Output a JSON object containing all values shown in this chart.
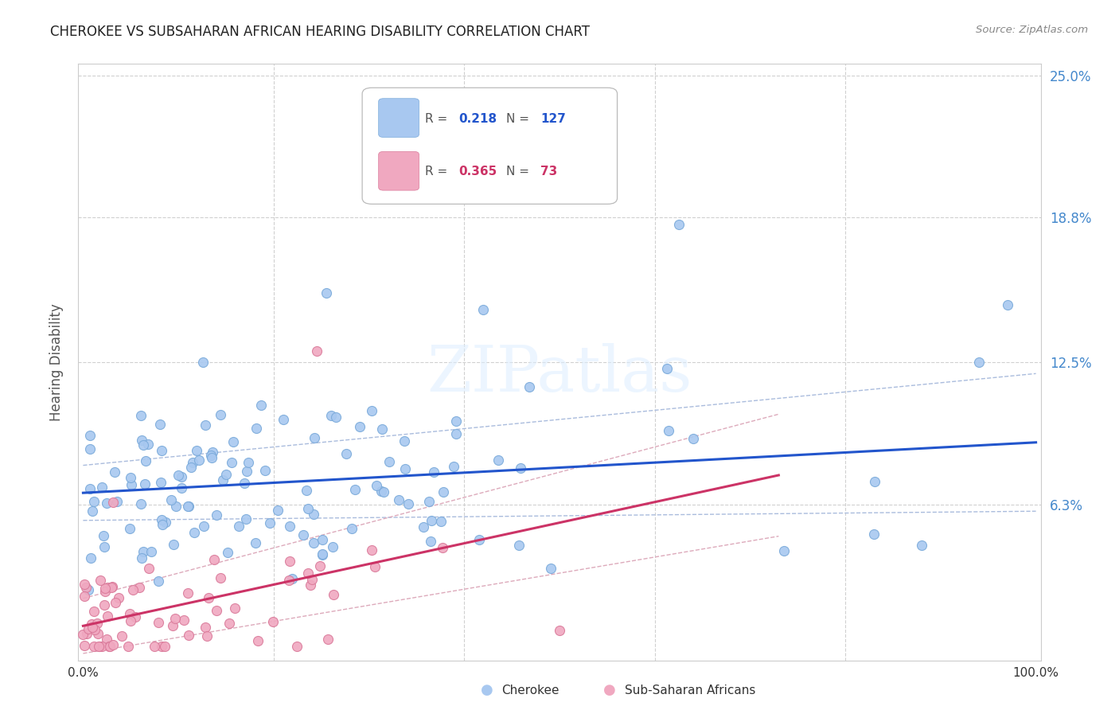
{
  "title": "CHEROKEE VS SUBSAHARAN AFRICAN HEARING DISABILITY CORRELATION CHART",
  "source": "Source: ZipAtlas.com",
  "ylabel": "Hearing Disability",
  "cherokee_color": "#a8c8f0",
  "cherokee_edge": "#7aaada",
  "subsaharan_color": "#f0a8c0",
  "subsaharan_edge": "#da7a9a",
  "trend1_color": "#2255cc",
  "trend2_color": "#cc3366",
  "ci1_color": "#aabcdd",
  "ci2_color": "#ddaabb",
  "xlim": [
    0.0,
    1.0
  ],
  "ylim": [
    0.0,
    0.25
  ],
  "yticks": [
    0.0,
    0.063,
    0.125,
    0.188,
    0.25
  ],
  "ytick_labels": [
    "",
    "6.3%",
    "12.5%",
    "18.8%",
    "25.0%"
  ],
  "xtick_vals": [
    0.0,
    1.0
  ],
  "xtick_labels": [
    "0.0%",
    "100.0%"
  ],
  "legend_r1": "0.218",
  "legend_n1": "127",
  "legend_r2": "0.365",
  "legend_n2": "73",
  "watermark": "ZIPatlas"
}
